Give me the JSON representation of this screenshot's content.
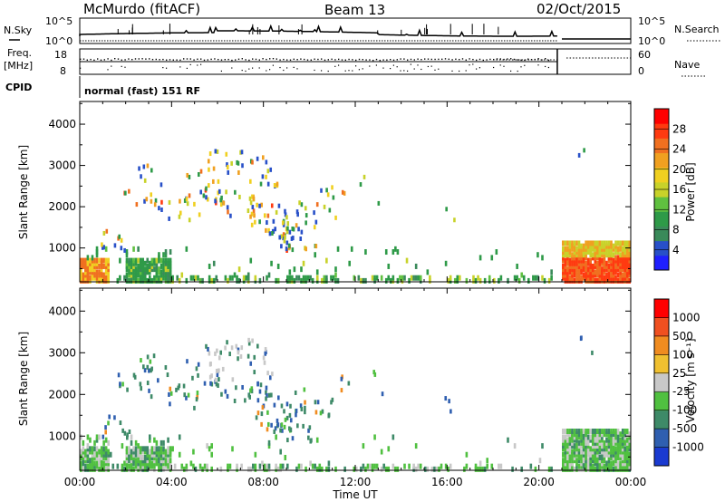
{
  "header": {
    "station": "McMurdo (fitACF)",
    "beam": "Beam 13",
    "date": "02/Oct/2015"
  },
  "strip": {
    "nsky_label": "N.Sky",
    "nsearch_label": "N.Search",
    "noise_tick_top": "10^5",
    "noise_tick_bottom": "10^0",
    "freq_label": "Freq.",
    "freq_unit": "[MHz]",
    "freq_ticks": [
      "18",
      "8"
    ],
    "nave_label": "Nave",
    "nave_ticks": [
      "60",
      "0"
    ],
    "cpid_label": "CPID",
    "cpid_value": "normal (fast) 151 RF"
  },
  "chart_data": [
    {
      "type": "heatmap",
      "name": "power-panel",
      "ylabel": "Slant Range [km]",
      "yticks": [
        1000,
        2000,
        3000,
        4000
      ],
      "ylim": [
        180,
        4550
      ],
      "xlim": [
        0,
        24
      ],
      "colorbar_label": "Power [dB]",
      "colorbar_ticks": [
        "4",
        "8",
        "12",
        "16",
        "20",
        "24",
        "28"
      ],
      "colorbar_colors": [
        "#1f1fff",
        "#2850c8",
        "#3a8a5a",
        "#2e9a48",
        "#60c040",
        "#c8d22a",
        "#f0d020",
        "#f0a020",
        "#f07020",
        "#ff3a10",
        "#ff0000"
      ]
    },
    {
      "type": "heatmap",
      "name": "velocity-panel",
      "ylabel": "Slant Range [km]",
      "yticks": [
        1000,
        2000,
        3000,
        4000
      ],
      "ylim": [
        180,
        4550
      ],
      "xlim": [
        0,
        24
      ],
      "colorbar_label": "Velocity [m s⁻¹]",
      "colorbar_ticks": [
        "1000",
        "500",
        "100",
        "25",
        "-25",
        "-100",
        "-500",
        "-1000"
      ],
      "colorbar_colors": [
        "#1a3ad0",
        "#2f5fb0",
        "#3e8a68",
        "#50c040",
        "#c8c8c8",
        "#f0c030",
        "#f08c20",
        "#f05020",
        "#ff0000"
      ]
    }
  ],
  "xaxis": {
    "label": "Time UT",
    "ticks": [
      "00:00",
      "04:00",
      "08:00",
      "12:00",
      "16:00",
      "20:00",
      "00:00"
    ]
  }
}
